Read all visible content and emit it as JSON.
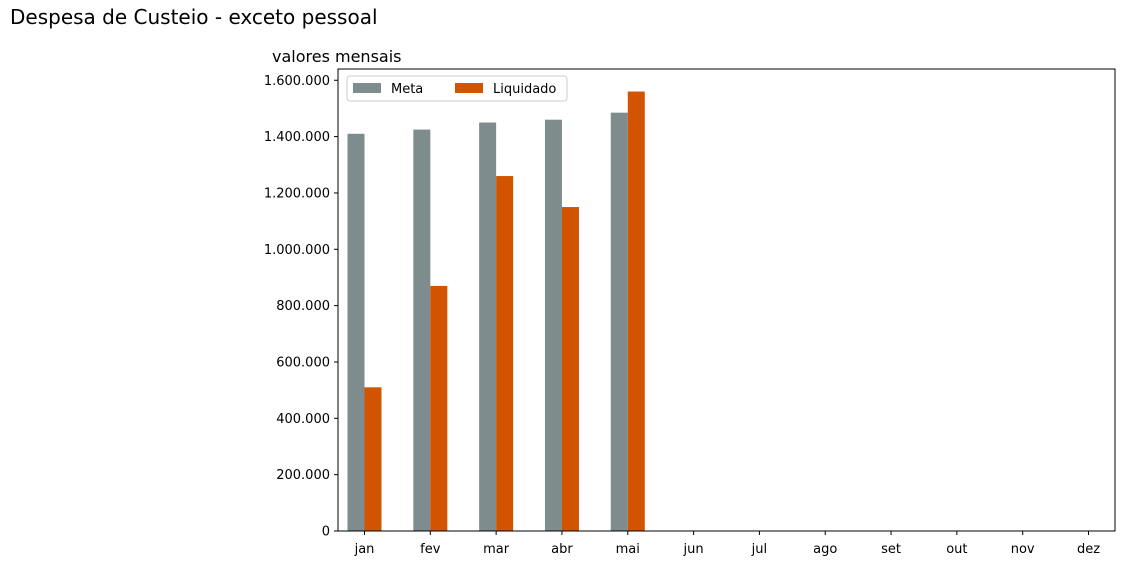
{
  "title": "Despesa de Custeio - exceto pessoal",
  "chart_data": {
    "type": "bar",
    "subtitle": "valores mensais",
    "categories": [
      "jan",
      "fev",
      "mar",
      "abr",
      "mai",
      "jun",
      "jul",
      "ago",
      "set",
      "out",
      "nov",
      "dez"
    ],
    "series": [
      {
        "name": "Meta",
        "color": "#7f8c8d",
        "values": [
          1410000,
          1425000,
          1450000,
          1460000,
          1485000,
          null,
          null,
          null,
          null,
          null,
          null,
          null
        ]
      },
      {
        "name": "Liquidado",
        "color": "#d35400",
        "values": [
          510000,
          870000,
          1260000,
          1150000,
          1560000,
          null,
          null,
          null,
          null,
          null,
          null,
          null
        ]
      }
    ],
    "yticks": [
      0,
      200000,
      400000,
      600000,
      800000,
      1000000,
      1200000,
      1400000,
      1600000
    ],
    "ytick_labels": [
      "0",
      "200.000",
      "400.000",
      "600.000",
      "800.000",
      "1.000.000",
      "1.200.000",
      "1.400.000",
      "1.600.000"
    ],
    "ylim": [
      0,
      1640000
    ],
    "xlabel": "",
    "ylabel": "",
    "legend_position": "top-left",
    "grid": false
  }
}
